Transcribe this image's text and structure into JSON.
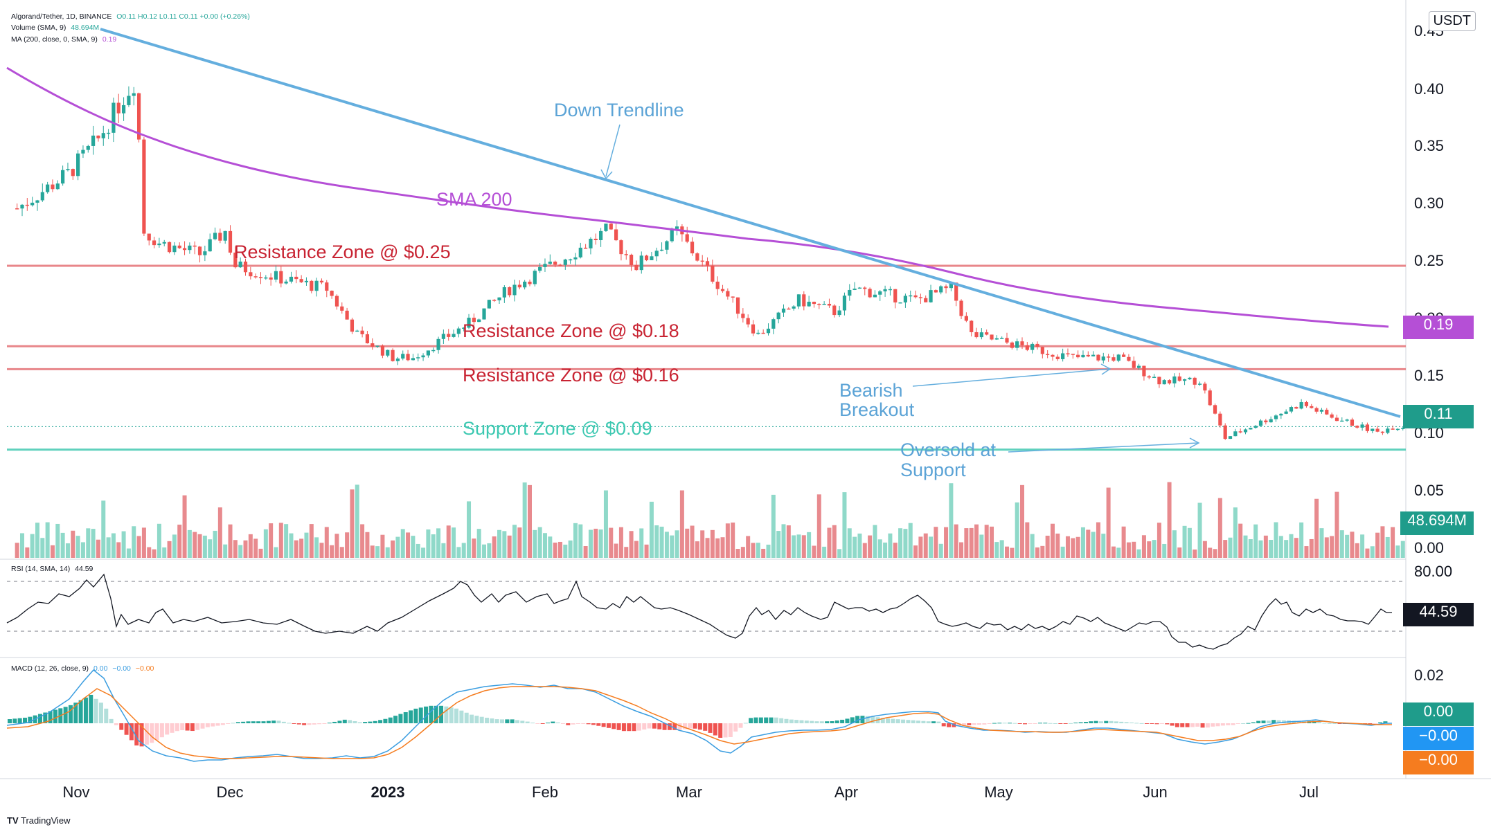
{
  "header": {
    "symbol_line": "Algorand/Tether, 1D, BINANCE",
    "ohlc": "O0.11 H0.12 L0.11 C0.11 +0.00 (+0.26%)",
    "volume_title": "Volume (SMA, 9)",
    "volume_value": "48.694M",
    "ma_title": "MA (200, close, 0, SMA, 9)",
    "ma_value": "0.19",
    "rsi_title": "RSI (14, SMA, 14)",
    "rsi_value": "44.59",
    "macd_title": "MACD (12, 26, close, 9)",
    "macd_values": [
      "0.00",
      "−0.00",
      "−0.00"
    ]
  },
  "currency": "USDT",
  "branding": "TradingView",
  "colors": {
    "up": "#26a69a",
    "down": "#ef5350",
    "vol_up": "#8fd9c9",
    "vol_down": "#e88a8e",
    "trendline": "#64aede",
    "sma": "#b54fd6",
    "resistance": "#e8868a",
    "support": "#5fd1bd",
    "label_red": "#c82332",
    "label_blue": "#5ba3d6",
    "label_teal": "#3cc8b1",
    "label_purple": "#b54fd6"
  },
  "badges": {
    "sma": "0.19",
    "price": "0.11",
    "volume": "48.694M",
    "rsi": "44.59",
    "macd_hist": "0.00",
    "macd_line": "−0.00",
    "signal_line": "−0.00"
  },
  "annotations": {
    "down_trendline": "Down Trendline",
    "sma200": "SMA 200",
    "res025": "Resistance Zone @ $0.25",
    "res018": "Resistance Zone @ $0.18",
    "res016": "Resistance Zone @ $0.16",
    "sup009": "Support Zone @ $0.09",
    "bearish1": "Bearish",
    "bearish2": "Breakout",
    "oversold1": "Oversold at",
    "oversold2": "Support"
  },
  "chart_data": {
    "type": "candlestick",
    "symbol": "Algorand/Tether",
    "interval": "1D",
    "exchange": "BINANCE",
    "price_axis": {
      "ticks": [
        "0.45",
        "0.40",
        "0.35",
        "0.30",
        "0.25",
        "0.20",
        "0.15",
        "0.10",
        "0.05",
        "0.00"
      ],
      "range": [
        0.0,
        0.45
      ]
    },
    "time_axis": {
      "labels": [
        "Nov",
        "Dec",
        "2023",
        "Feb",
        "Mar",
        "Apr",
        "May",
        "Jun",
        "Jul"
      ]
    },
    "rsi_axis": {
      "ticks": [
        "80.00"
      ],
      "upper_band": 70,
      "lower_band": 30
    },
    "macd_axis": {
      "ticks": [
        "0.02"
      ]
    },
    "close_path": [
      {
        "x": "2022-10-15",
        "y": 0.3
      },
      {
        "x": "2022-10-25",
        "y": 0.33
      },
      {
        "x": "2022-10-31",
        "y": 0.36
      },
      {
        "x": "2022-11-04",
        "y": 0.39
      },
      {
        "x": "2022-11-07",
        "y": 0.41
      },
      {
        "x": "2022-11-08",
        "y": 0.36
      },
      {
        "x": "2022-11-09",
        "y": 0.28
      },
      {
        "x": "2022-11-12",
        "y": 0.27
      },
      {
        "x": "2022-11-20",
        "y": 0.26
      },
      {
        "x": "2022-11-25",
        "y": 0.28
      },
      {
        "x": "2022-11-27",
        "y": 0.25
      },
      {
        "x": "2022-12-05",
        "y": 0.24
      },
      {
        "x": "2022-12-15",
        "y": 0.23
      },
      {
        "x": "2022-12-21",
        "y": 0.19
      },
      {
        "x": "2022-12-28",
        "y": 0.17
      },
      {
        "x": "2023-01-01",
        "y": 0.17
      },
      {
        "x": "2023-01-12",
        "y": 0.2
      },
      {
        "x": "2023-01-20",
        "y": 0.23
      },
      {
        "x": "2023-02-01",
        "y": 0.26
      },
      {
        "x": "2023-02-08",
        "y": 0.28
      },
      {
        "x": "2023-02-14",
        "y": 0.25
      },
      {
        "x": "2023-02-22",
        "y": 0.28
      },
      {
        "x": "2023-03-01",
        "y": 0.24
      },
      {
        "x": "2023-03-10",
        "y": 0.19
      },
      {
        "x": "2023-03-18",
        "y": 0.22
      },
      {
        "x": "2023-03-25",
        "y": 0.21
      },
      {
        "x": "2023-03-29",
        "y": 0.23
      },
      {
        "x": "2023-04-10",
        "y": 0.22
      },
      {
        "x": "2023-04-17",
        "y": 0.23
      },
      {
        "x": "2023-04-21",
        "y": 0.19
      },
      {
        "x": "2023-05-01",
        "y": 0.18
      },
      {
        "x": "2023-05-11",
        "y": 0.17
      },
      {
        "x": "2023-05-20",
        "y": 0.17
      },
      {
        "x": "2023-05-28",
        "y": 0.15
      },
      {
        "x": "2023-06-05",
        "y": 0.15
      },
      {
        "x": "2023-06-10",
        "y": 0.1
      },
      {
        "x": "2023-06-15",
        "y": 0.11
      },
      {
        "x": "2023-06-25",
        "y": 0.13
      },
      {
        "x": "2023-06-30",
        "y": 0.12
      },
      {
        "x": "2023-07-10",
        "y": 0.105
      },
      {
        "x": "2023-07-13",
        "y": 0.11
      },
      {
        "x": "2023-07-15",
        "y": 0.11
      }
    ],
    "sma200_path": [
      {
        "x": "2022-10-15",
        "y": 0.42
      },
      {
        "x": "2022-11-01",
        "y": 0.38
      },
      {
        "x": "2022-11-20",
        "y": 0.33
      },
      {
        "x": "2022-12-15",
        "y": 0.31
      },
      {
        "x": "2023-01-15",
        "y": 0.3
      },
      {
        "x": "2023-02-15",
        "y": 0.28
      },
      {
        "x": "2023-03-15",
        "y": 0.27
      },
      {
        "x": "2023-04-10",
        "y": 0.255
      },
      {
        "x": "2023-05-01",
        "y": 0.24
      },
      {
        "x": "2023-06-01",
        "y": 0.215
      },
      {
        "x": "2023-07-01",
        "y": 0.2
      },
      {
        "x": "2023-07-15",
        "y": 0.19
      }
    ],
    "trendline": [
      {
        "x": "2022-11-05",
        "y": 0.45
      },
      {
        "x": "2023-07-17",
        "y": 0.11
      }
    ],
    "horizontal_levels": [
      {
        "price": 0.25,
        "label": "Resistance Zone @ $0.25",
        "kind": "resistance"
      },
      {
        "price": 0.18,
        "label": "Resistance Zone @ $0.18",
        "kind": "resistance"
      },
      {
        "price": 0.16,
        "label": "Resistance Zone @ $0.16",
        "kind": "resistance"
      },
      {
        "price": 0.09,
        "label": "Support Zone @ $0.09",
        "kind": "support"
      }
    ],
    "last_values": {
      "price": 0.11,
      "sma200": 0.19,
      "volume": "48.694M",
      "rsi": 44.59
    }
  }
}
